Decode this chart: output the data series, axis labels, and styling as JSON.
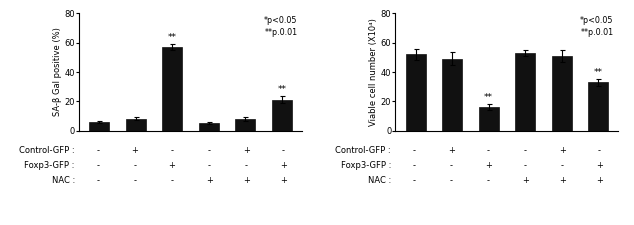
{
  "chart1": {
    "ylabel": "SA-β Gal positive (%)",
    "ylim": [
      0,
      80
    ],
    "yticks": [
      0,
      20,
      40,
      60,
      80
    ],
    "values": [
      6,
      8,
      57,
      5,
      8,
      21
    ],
    "errors": [
      0.8,
      1.0,
      2.0,
      0.6,
      1.2,
      2.5
    ],
    "annotations": [
      "",
      "",
      "**",
      "",
      "",
      "**"
    ],
    "legend_text": [
      "*p<0.05",
      "**p.0.01"
    ],
    "bar_color": "#111111",
    "control_gfp": [
      "-",
      "+",
      "-",
      "-",
      "+",
      "-"
    ],
    "foxp3_gfp": [
      "-",
      "-",
      "+",
      "-",
      "-",
      "+"
    ],
    "nac": [
      "-",
      "-",
      "-",
      "+",
      "+",
      "+"
    ]
  },
  "chart2": {
    "ylabel": "Viable cell number (X10⁴)",
    "ylim": [
      0,
      80
    ],
    "yticks": [
      0,
      20,
      40,
      60,
      80
    ],
    "values": [
      52,
      49,
      16,
      53,
      51,
      33
    ],
    "errors": [
      3.5,
      4.5,
      2.0,
      2.0,
      4.0,
      2.5
    ],
    "annotations": [
      "",
      "",
      "**",
      "",
      "",
      "**"
    ],
    "legend_text": [
      "*p<0.05",
      "**p.0.01"
    ],
    "bar_color": "#111111",
    "control_gfp": [
      "-",
      "+",
      "-",
      "-",
      "+",
      "-"
    ],
    "foxp3_gfp": [
      "-",
      "-",
      "+",
      "-",
      "-",
      "+"
    ],
    "nac": [
      "-",
      "-",
      "-",
      "+",
      "+",
      "+"
    ]
  },
  "label_fontsize": 6.0,
  "tick_fontsize": 6.0,
  "annot_fontsize": 6.5,
  "legend_fontsize": 5.8,
  "row_labels": [
    "Control-GFP :",
    "Foxp3-GFP :",
    "NAC :"
  ]
}
